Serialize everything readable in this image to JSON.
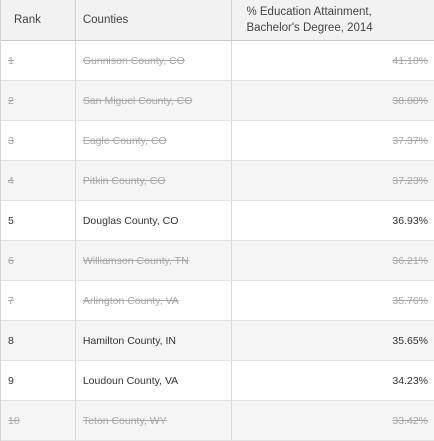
{
  "table": {
    "headers": {
      "rank": "Rank",
      "counties": "Counties",
      "metric_line1": "% Education Attainment,",
      "metric_line2": "Bachelor's Degree, 2014"
    },
    "rows": [
      {
        "rank": "1",
        "county": "Gunnison County, CO",
        "value": "41.18%",
        "struck": true
      },
      {
        "rank": "2",
        "county": "San Miguel County, CO",
        "value": "38.88%",
        "struck": true
      },
      {
        "rank": "3",
        "county": "Eagle County, CO",
        "value": "37.37%",
        "struck": true
      },
      {
        "rank": "4",
        "county": "Pitkin County, CO",
        "value": "37.23%",
        "struck": true
      },
      {
        "rank": "5",
        "county": "Douglas County, CO",
        "value": "36.93%",
        "struck": false
      },
      {
        "rank": "6",
        "county": "Williamson County, TN",
        "value": "36.21%",
        "struck": true
      },
      {
        "rank": "7",
        "county": "Arlington County, VA",
        "value": "35.76%",
        "struck": true
      },
      {
        "rank": "8",
        "county": "Hamilton County, IN",
        "value": "35.65%",
        "struck": false
      },
      {
        "rank": "9",
        "county": "Loudoun County, VA",
        "value": "34.23%",
        "struck": false
      },
      {
        "rank": "10",
        "county": "Teton County, WY",
        "value": "33.42%",
        "struck": true
      }
    ]
  }
}
